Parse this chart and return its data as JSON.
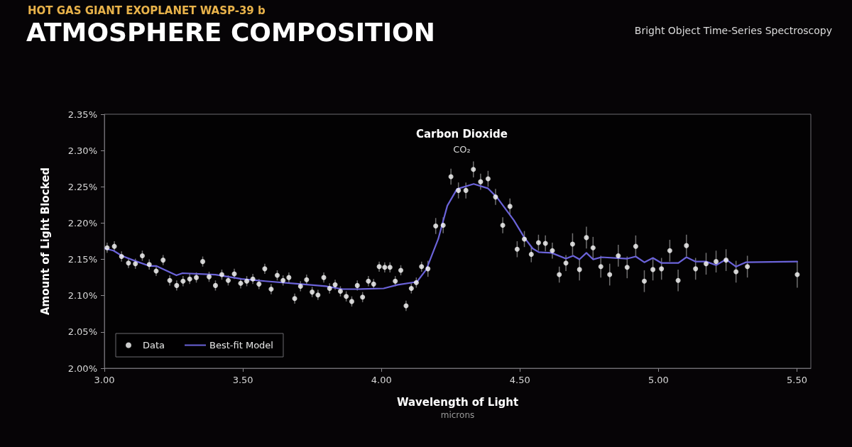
{
  "chart_data": {
    "type": "scatter",
    "subtitle": "HOT GAS GIANT EXOPLANET WASP-39 b",
    "title": "ATMOSPHERE COMPOSITION",
    "xlabel": "Wavelength of Light",
    "ylabel": "Amount of Light Blocked",
    "annotations": [
      "Bright Object Time-Series Spectroscopy",
      "microns",
      "Carbon Dioxide",
      "CO₂"
    ],
    "xlim": [
      3.0,
      5.55
    ],
    "xticks": [
      {
        "value": 3,
        "label": "3.00"
      },
      {
        "value": 3.5,
        "label": "3.50"
      },
      {
        "value": 4,
        "label": "4.00"
      },
      {
        "value": 4.5,
        "label": "4.50"
      },
      {
        "value": 5,
        "label": "5.00"
      },
      {
        "value": 5.5,
        "label": "5.50"
      }
    ],
    "ylim": [
      2.0,
      2.35
    ],
    "yticks": [
      {
        "value": 2,
        "label": "2.00%"
      },
      {
        "value": 2.05,
        "label": "2.05%"
      },
      {
        "value": 2.1,
        "label": "2.10%"
      },
      {
        "value": 2.15,
        "label": "2.15%"
      },
      {
        "value": 2.2,
        "label": "2.20%"
      },
      {
        "value": 2.25,
        "label": "2.25%"
      },
      {
        "value": 2.3,
        "label": "2.30%"
      },
      {
        "value": 2.35,
        "label": "2.35%"
      }
    ],
    "grid": false,
    "legend": "bottom left",
    "marker": "circle",
    "series": [
      {
        "name": "Data",
        "color": "#ffffff",
        "x": [
          3.01,
          3.036,
          3.062,
          3.087,
          3.112,
          3.137,
          3.162,
          3.187,
          3.212,
          3.236,
          3.261,
          3.284,
          3.308,
          3.332,
          3.355,
          3.378,
          3.401,
          3.424,
          3.447,
          3.469,
          3.492,
          3.514,
          3.536,
          3.558,
          3.579,
          3.602,
          3.624,
          3.645,
          3.666,
          3.687,
          3.708,
          3.73,
          3.75,
          3.771,
          3.792,
          3.813,
          3.833,
          3.852,
          3.873,
          3.893,
          3.913,
          3.932,
          3.953,
          3.972,
          3.992,
          4.012,
          4.031,
          4.05,
          4.07,
          4.089,
          4.108,
          4.126,
          4.145,
          4.168,
          4.196,
          4.223,
          4.251,
          4.278,
          4.305,
          4.332,
          4.358,
          4.385,
          4.412,
          4.438,
          4.464,
          4.49,
          4.516,
          4.541,
          4.567,
          4.592,
          4.617,
          4.642,
          4.666,
          4.69,
          4.715,
          4.74,
          4.764,
          4.792,
          4.824,
          4.855,
          4.887,
          4.918,
          4.949,
          4.98,
          5.011,
          5.041,
          5.071,
          5.101,
          5.134,
          5.172,
          5.208,
          5.244,
          5.28,
          5.321,
          5.501
        ],
        "values": [
          2.166,
          2.168,
          2.154,
          2.145,
          2.144,
          2.155,
          2.143,
          2.134,
          2.149,
          2.121,
          2.114,
          2.12,
          2.123,
          2.125,
          2.147,
          2.126,
          2.114,
          2.129,
          2.121,
          2.13,
          2.117,
          2.12,
          2.123,
          2.116,
          2.137,
          2.109,
          2.128,
          2.121,
          2.125,
          2.096,
          2.113,
          2.122,
          2.105,
          2.101,
          2.125,
          2.11,
          2.115,
          2.106,
          2.099,
          2.092,
          2.114,
          2.098,
          2.12,
          2.116,
          2.14,
          2.139,
          2.139,
          2.12,
          2.135,
          2.086,
          2.11,
          2.118,
          2.14,
          2.137,
          2.196,
          2.197,
          2.264,
          2.245,
          2.245,
          2.274,
          2.257,
          2.261,
          2.236,
          2.197,
          2.223,
          2.164,
          2.178,
          2.157,
          2.173,
          2.172,
          2.162,
          2.129,
          2.145,
          2.171,
          2.136,
          2.18,
          2.166,
          2.14,
          2.129,
          2.155,
          2.139,
          2.168,
          2.12,
          2.136,
          2.137,
          2.162,
          2.121,
          2.169,
          2.137,
          2.144,
          2.147,
          2.149,
          2.133,
          2.14,
          2.129
        ],
        "errors": [
          0.007,
          0.007,
          0.007,
          0.007,
          0.007,
          0.007,
          0.007,
          0.007,
          0.007,
          0.007,
          0.007,
          0.007,
          0.007,
          0.007,
          0.007,
          0.007,
          0.007,
          0.007,
          0.007,
          0.007,
          0.007,
          0.007,
          0.007,
          0.007,
          0.007,
          0.007,
          0.007,
          0.007,
          0.007,
          0.007,
          0.007,
          0.007,
          0.007,
          0.007,
          0.007,
          0.007,
          0.007,
          0.007,
          0.007,
          0.007,
          0.007,
          0.007,
          0.007,
          0.007,
          0.007,
          0.007,
          0.007,
          0.007,
          0.007,
          0.007,
          0.007,
          0.007,
          0.007,
          0.011,
          0.011,
          0.011,
          0.011,
          0.011,
          0.011,
          0.011,
          0.011,
          0.011,
          0.011,
          0.011,
          0.011,
          0.011,
          0.011,
          0.011,
          0.011,
          0.011,
          0.011,
          0.011,
          0.011,
          0.015,
          0.015,
          0.015,
          0.015,
          0.015,
          0.015,
          0.015,
          0.015,
          0.015,
          0.015,
          0.015,
          0.015,
          0.015,
          0.015,
          0.015,
          0.015,
          0.015,
          0.015,
          0.015,
          0.015,
          0.015,
          0.018
        ]
      },
      {
        "name": "Best-fit Model",
        "type": "line",
        "color": "#6b63d9",
        "marker": "none",
        "line_style": "solid",
        "x": [
          3.003,
          3.033,
          3.063,
          3.11,
          3.162,
          3.187,
          3.26,
          3.282,
          3.401,
          3.495,
          3.581,
          3.709,
          3.799,
          3.859,
          3.914,
          4.008,
          4.059,
          4.128,
          4.162,
          4.205,
          4.238,
          4.273,
          4.333,
          4.384,
          4.418,
          4.478,
          4.516,
          4.546,
          4.568,
          4.614,
          4.666,
          4.692,
          4.715,
          4.74,
          4.764,
          4.794,
          4.888,
          4.918,
          4.949,
          4.98,
          5.011,
          5.072,
          5.101,
          5.134,
          5.172,
          5.208,
          5.244,
          5.28,
          5.315,
          5.501
        ],
        "values": [
          2.165,
          2.162,
          2.155,
          2.148,
          2.141,
          2.141,
          2.128,
          2.131,
          2.129,
          2.123,
          2.12,
          2.116,
          2.113,
          2.109,
          2.109,
          2.11,
          2.115,
          2.119,
          2.136,
          2.178,
          2.224,
          2.247,
          2.254,
          2.248,
          2.235,
          2.204,
          2.18,
          2.165,
          2.16,
          2.159,
          2.151,
          2.155,
          2.15,
          2.159,
          2.15,
          2.153,
          2.151,
          2.154,
          2.146,
          2.152,
          2.145,
          2.145,
          2.153,
          2.147,
          2.147,
          2.142,
          2.15,
          2.14,
          2.146,
          2.147
        ]
      }
    ]
  }
}
